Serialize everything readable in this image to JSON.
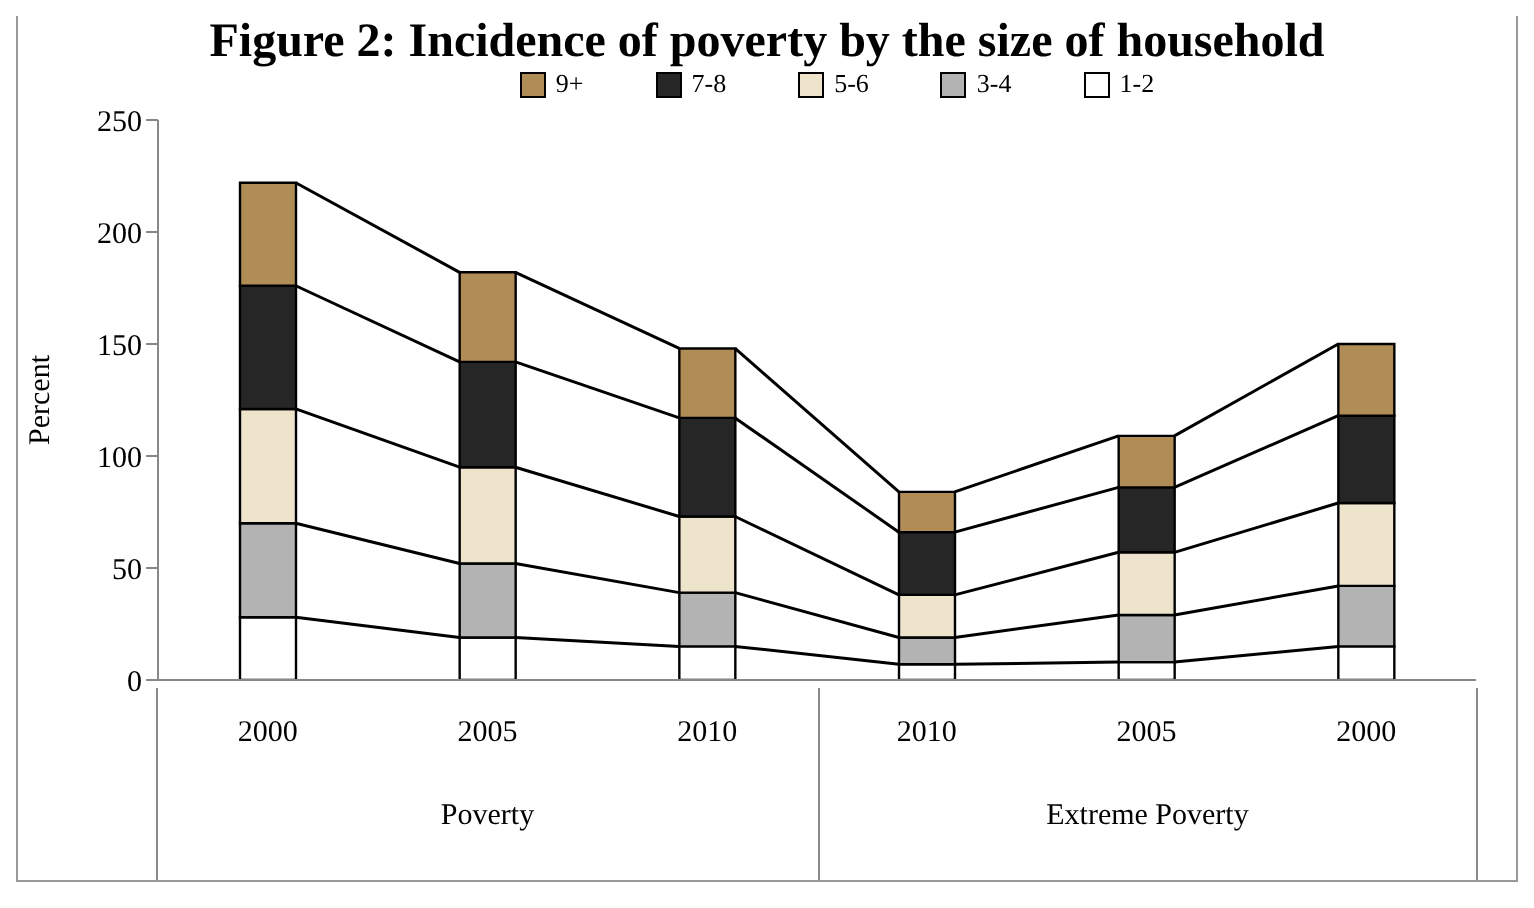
{
  "chart_data": {
    "type": "bar",
    "title": "Figure 2: Incidence of poverty by the size of household",
    "ylabel": "Percent",
    "categories": [
      "2000",
      "2005",
      "2010",
      "2010",
      "2005",
      "2000"
    ],
    "annotations": [
      "Poverty",
      "Extreme Poverty"
    ],
    "stacked": true,
    "ylim": [
      0,
      250
    ],
    "yticks": [
      0,
      50,
      100,
      150,
      200,
      250
    ],
    "grid": false,
    "legend": "top",
    "series": [
      {
        "name": "1-2",
        "color": "#ffffff",
        "values": [
          28,
          19,
          15,
          7,
          8,
          15
        ]
      },
      {
        "name": "3-4",
        "color": "#b3b3b3",
        "values": [
          42,
          33,
          24,
          12,
          21,
          27
        ]
      },
      {
        "name": "5-6",
        "color": "#eee4cc",
        "values": [
          51,
          43,
          34,
          19,
          28,
          37
        ]
      },
      {
        "name": "7-8",
        "color": "#262626",
        "values": [
          55,
          47,
          44,
          28,
          29,
          39
        ]
      },
      {
        "name": "9+",
        "color": "#b08d57",
        "values": [
          46,
          40,
          31,
          18,
          23,
          32
        ]
      }
    ]
  }
}
